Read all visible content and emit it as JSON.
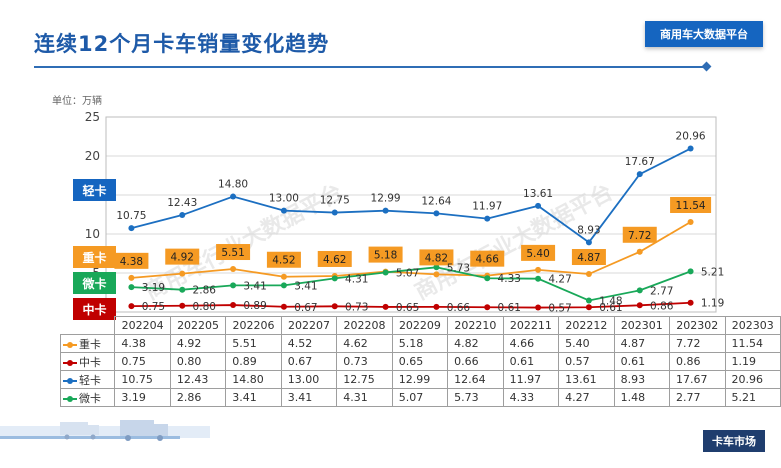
{
  "title": "连续12个月卡车销量变化趋势",
  "brand": "商用车大数据平台",
  "unit": "单位：万辆",
  "footer": "卡车市场",
  "watermark": "商用车行业大数据平台",
  "series_tags": [
    {
      "key": "light",
      "label": "轻卡",
      "color": "#1565c0"
    },
    {
      "key": "heavy",
      "label": "重卡",
      "color": "#f59a23"
    },
    {
      "key": "micro",
      "label": "微卡",
      "color": "#19a859"
    },
    {
      "key": "medium",
      "label": "中卡",
      "color": "#c00000"
    }
  ],
  "chart_data": {
    "type": "line",
    "categories": [
      "202204",
      "202205",
      "202206",
      "202207",
      "202208",
      "202209",
      "202210",
      "202211",
      "202212",
      "202301",
      "202302",
      "202303"
    ],
    "ylim": [
      0,
      25
    ],
    "yticks": [
      "25",
      "20",
      "15",
      "10",
      "5",
      "0"
    ],
    "ytick_values": [
      25,
      20,
      15,
      10,
      5,
      0
    ],
    "series": [
      {
        "name": "重卡",
        "key": "heavy",
        "color": "#f59a23",
        "values": [
          4.38,
          4.92,
          5.51,
          4.52,
          4.62,
          5.18,
          4.82,
          4.66,
          5.4,
          4.87,
          7.72,
          11.54
        ],
        "labels": [
          "4.38",
          "4.92",
          "5.51",
          "4.52",
          "4.62",
          "5.18",
          "4.82",
          "4.66",
          "5.40",
          "4.87",
          "7.72",
          "11.54"
        ]
      },
      {
        "name": "中卡",
        "key": "medium",
        "color": "#c00000",
        "values": [
          0.75,
          0.8,
          0.89,
          0.67,
          0.73,
          0.65,
          0.66,
          0.61,
          0.57,
          0.61,
          0.86,
          1.19
        ],
        "labels": [
          "0.75",
          "0.80",
          "0.89",
          "0.67",
          "0.73",
          "0.65",
          "0.66",
          "0.61",
          "0.57",
          "0.61",
          "0.86",
          "1.19"
        ]
      },
      {
        "name": "轻卡",
        "key": "light",
        "color": "#1c6fc1",
        "values": [
          10.75,
          12.43,
          14.8,
          13.0,
          12.75,
          12.99,
          12.64,
          11.97,
          13.61,
          8.93,
          17.67,
          20.96
        ],
        "labels": [
          "10.75",
          "12.43",
          "14.80",
          "13.00",
          "12.75",
          "12.99",
          "12.64",
          "11.97",
          "13.61",
          "8.93",
          "17.67",
          "20.96"
        ]
      },
      {
        "name": "微卡",
        "key": "micro",
        "color": "#19a859",
        "values": [
          3.19,
          2.86,
          3.41,
          3.41,
          4.31,
          5.07,
          5.73,
          4.33,
          4.27,
          1.48,
          2.77,
          5.21
        ],
        "labels": [
          "3.19",
          "2.86",
          "3.41",
          "3.41",
          "4.31",
          "5.07",
          "5.73",
          "4.33",
          "4.27",
          "1.48",
          "2.77",
          "5.21"
        ]
      }
    ]
  }
}
